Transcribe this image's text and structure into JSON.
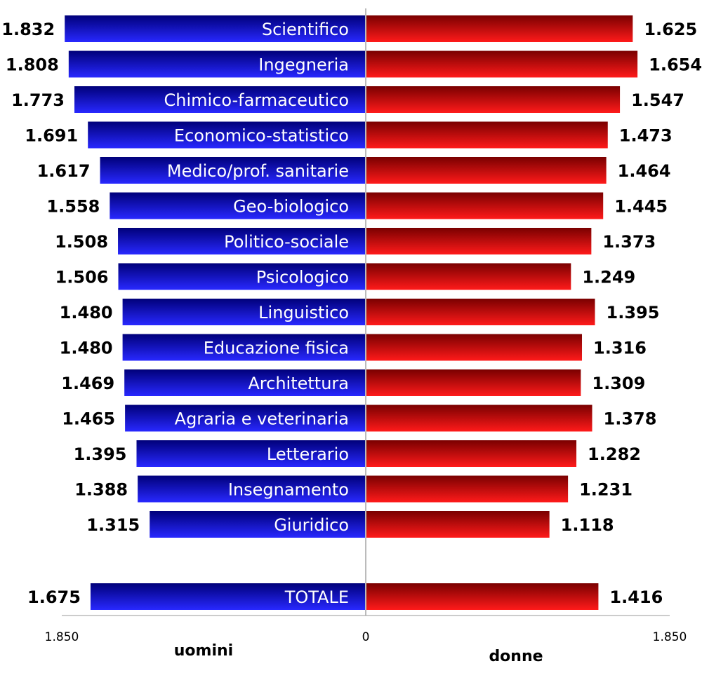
{
  "chart_data": {
    "type": "bar",
    "orientation": "horizontal-diverging",
    "categories": [
      "Scientifico",
      "Ingegneria",
      "Chimico-farmaceutico",
      "Economico-statistico",
      "Medico/prof. sanitarie",
      "Geo-biologico",
      "Politico-sociale",
      "Psicologico",
      "Linguistico",
      "Educazione fisica",
      "Architettura",
      "Agraria e veterinaria",
      "Letterario",
      "Insegnamento",
      "Giuridico"
    ],
    "series": [
      {
        "name": "uomini",
        "values": [
          1832,
          1808,
          1773,
          1691,
          1617,
          1558,
          1508,
          1506,
          1480,
          1480,
          1469,
          1465,
          1395,
          1388,
          1315
        ],
        "labels": [
          "1.832",
          "1.808",
          "1.773",
          "1.691",
          "1.617",
          "1.558",
          "1.508",
          "1.506",
          "1.480",
          "1.480",
          "1.469",
          "1.465",
          "1.395",
          "1.388",
          "1.315"
        ],
        "total_value": 1675,
        "total_label": "1.675",
        "color": "#1010c0"
      },
      {
        "name": "donne",
        "values": [
          1625,
          1654,
          1547,
          1473,
          1464,
          1445,
          1373,
          1249,
          1395,
          1316,
          1309,
          1378,
          1282,
          1231,
          1118
        ],
        "labels": [
          "1.625",
          "1.654",
          "1.547",
          "1.473",
          "1.464",
          "1.445",
          "1.373",
          "1.249",
          "1.395",
          "1.316",
          "1.309",
          "1.378",
          "1.282",
          "1.231",
          "1.118"
        ],
        "total_value": 1416,
        "total_label": "1.416",
        "color": "#d00000"
      }
    ],
    "total_category": "TOTALE",
    "xlim": [
      -1850,
      1850
    ],
    "x_ticks": [
      {
        "value": -1850,
        "label": "1.850"
      },
      {
        "value": 0,
        "label": "0"
      },
      {
        "value": 1850,
        "label": "1.850"
      }
    ],
    "left_axis_label": "uomini",
    "right_axis_label": "donne",
    "grid": false
  }
}
